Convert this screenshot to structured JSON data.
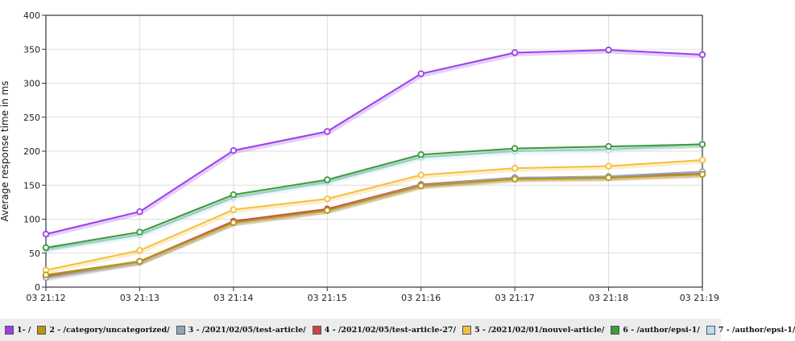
{
  "chart_data": {
    "type": "line",
    "ylabel": "Average response time in ms",
    "xlabel": "",
    "ylim": [
      0,
      400
    ],
    "yticks": [
      0,
      50,
      100,
      150,
      200,
      250,
      300,
      350,
      400
    ],
    "categories": [
      "03 21:12",
      "03 21:13",
      "03 21:14",
      "03 21:15",
      "03 21:16",
      "03 21:17",
      "03 21:18",
      "03 21:19"
    ],
    "grid": true,
    "legend_position": "bottom",
    "series": [
      {
        "name": "1- /",
        "color": "#9b3fe8",
        "values": [
          78,
          111,
          201,
          229,
          314,
          345,
          349,
          342
        ]
      },
      {
        "name": "2 - /category/uncategorized/",
        "color": "#b8960c",
        "values": [
          18,
          38,
          95,
          113,
          149,
          159,
          161,
          166
        ]
      },
      {
        "name": "3 - /2021/02/05/test-article/",
        "color": "#8fa6bd",
        "values": [
          14,
          37,
          95,
          113,
          150,
          161,
          163,
          170
        ]
      },
      {
        "name": "4 - /2021/02/05/test-article-27/",
        "color": "#c8464a",
        "values": [
          16,
          38,
          97,
          115,
          151,
          161,
          162,
          167
        ]
      },
      {
        "name": "5 - /2021/02/01/nouvel-article/",
        "color": "#f4c03c",
        "values": [
          25,
          54,
          114,
          130,
          165,
          175,
          178,
          187
        ]
      },
      {
        "name": "6 - /author/epsi-1/",
        "color": "#3d9a3d",
        "values": [
          58,
          81,
          136,
          158,
          195,
          204,
          207,
          210
        ]
      },
      {
        "name": "7 - /author/epsi-1/",
        "color": "#b9dcf5",
        "values": [
          56,
          77,
          132,
          155,
          191,
          200,
          202,
          211
        ]
      }
    ]
  }
}
